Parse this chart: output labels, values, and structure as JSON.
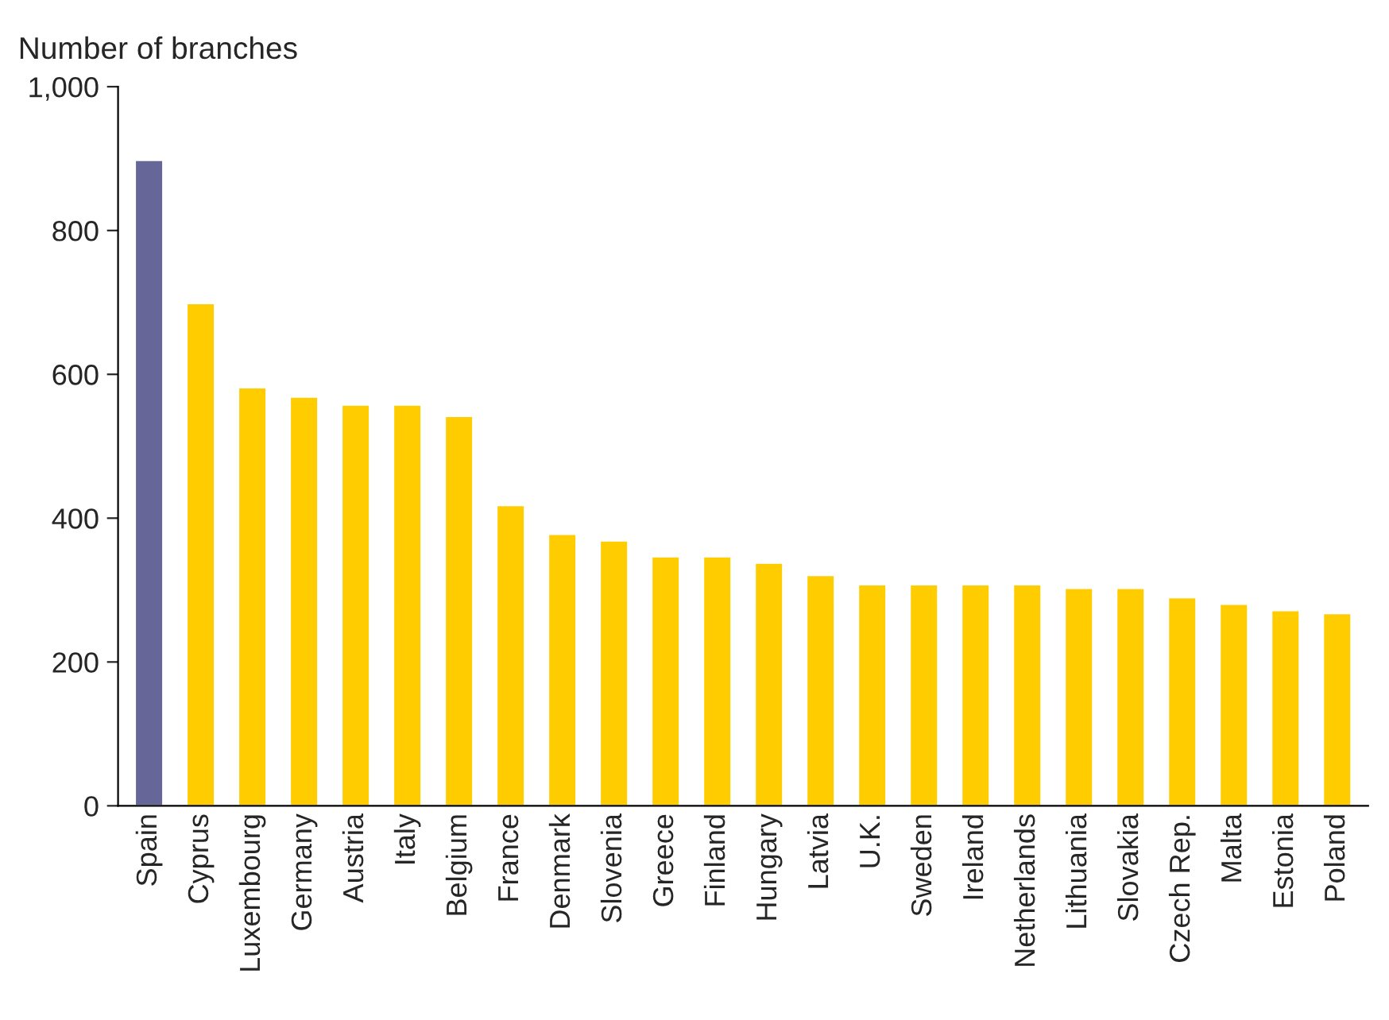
{
  "chart_data": {
    "type": "bar",
    "ylabel": "Number of branches",
    "categories": [
      "Spain",
      "Cyprus",
      "Luxembourg",
      "Germany",
      "Austria",
      "Italy",
      "Belgium",
      "France",
      "Denmark",
      "Slovenia",
      "Greece",
      "Finland",
      "Hungary",
      "Latvia",
      "U.K.",
      "Sweden",
      "Ireland",
      "Netherlands",
      "Lithuania",
      "Slovakia",
      "Czech Rep.",
      "Malta",
      "Estonia",
      "Poland"
    ],
    "values": [
      898,
      699,
      582,
      569,
      558,
      558,
      542,
      418,
      378,
      369,
      347,
      347,
      338,
      321,
      308,
      308,
      308,
      308,
      303,
      303,
      290,
      281,
      272,
      268
    ],
    "colors": [
      "#666699",
      "#ffcc00",
      "#ffcc00",
      "#ffcc00",
      "#ffcc00",
      "#ffcc00",
      "#ffcc00",
      "#ffcc00",
      "#ffcc00",
      "#ffcc00",
      "#ffcc00",
      "#ffcc00",
      "#ffcc00",
      "#ffcc00",
      "#ffcc00",
      "#ffcc00",
      "#ffcc00",
      "#ffcc00",
      "#ffcc00",
      "#ffcc00",
      "#ffcc00",
      "#ffcc00",
      "#ffcc00",
      "#ffcc00"
    ],
    "ylim": [
      0,
      1000
    ],
    "yticks": [
      0,
      200,
      400,
      600,
      800,
      {
        "value": 1000,
        "label": "1,000"
      }
    ],
    "grid": false,
    "legend": false
  }
}
